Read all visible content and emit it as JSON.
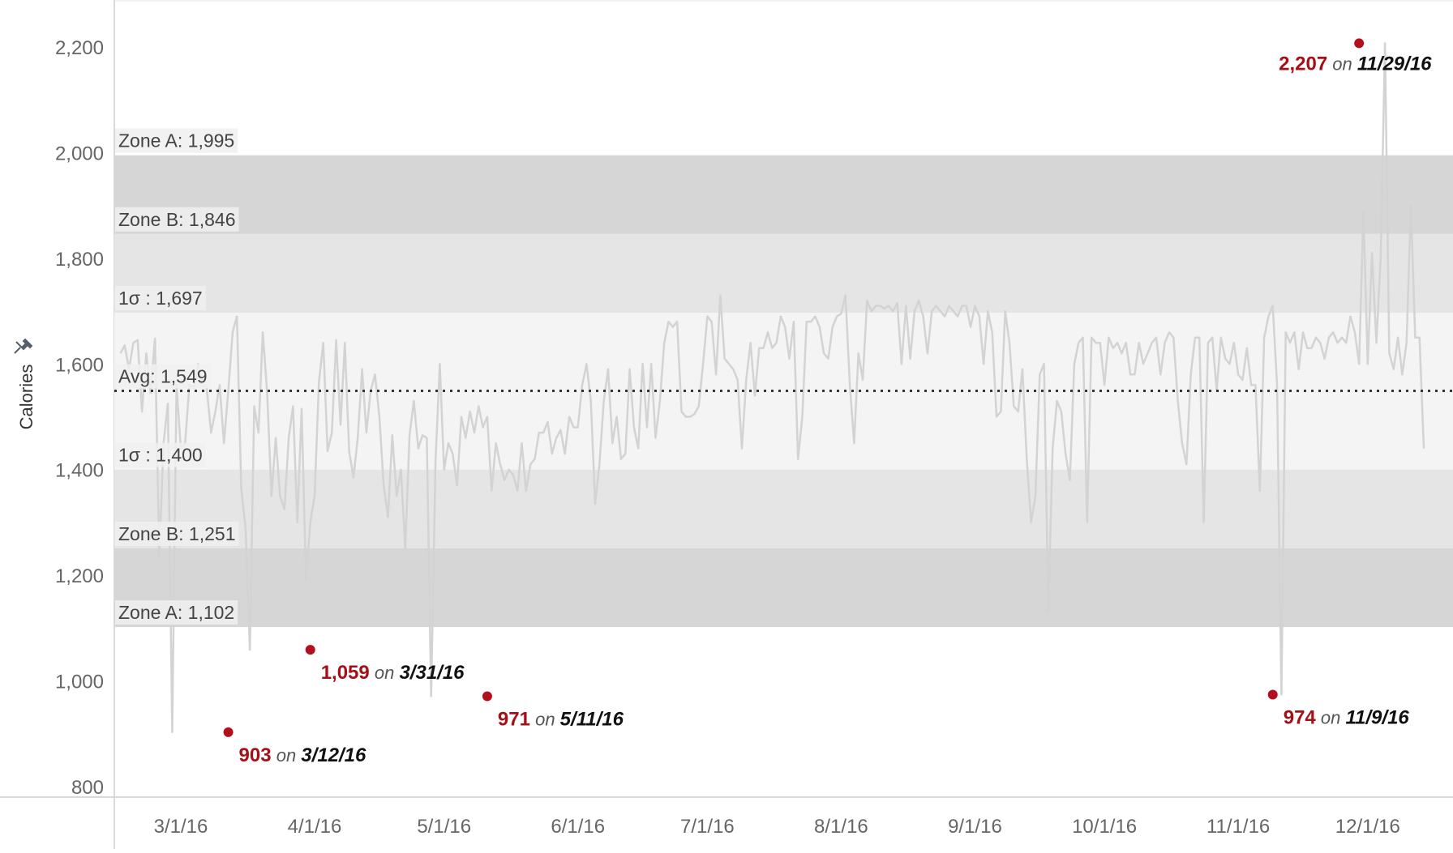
{
  "chart_data": {
    "type": "line",
    "title": "",
    "xlabel": "",
    "ylabel": "Calories",
    "ylim": [
      790,
      2300
    ],
    "x_range": [
      "2016-02-16",
      "2016-12-31"
    ],
    "y_ticks": [
      800,
      1000,
      1200,
      1400,
      1600,
      1800,
      2000,
      2200
    ],
    "y_tick_labels": [
      "800",
      "1,000",
      "1,200",
      "1,400",
      "1,600",
      "1,800",
      "2,000",
      "2,200"
    ],
    "x_ticks": [
      "2016-03-01",
      "2016-04-01",
      "2016-05-01",
      "2016-06-01",
      "2016-07-01",
      "2016-08-01",
      "2016-09-01",
      "2016-10-01",
      "2016-11-01",
      "2016-12-01"
    ],
    "x_tick_labels": [
      "3/1/16",
      "4/1/16",
      "5/1/16",
      "6/1/16",
      "7/1/16",
      "8/1/16",
      "9/1/16",
      "10/1/16",
      "11/1/16",
      "12/1/16"
    ],
    "colors": {
      "line": "#d3d3d3",
      "zone_a": "#d6d6d6",
      "zone_b": "#e5e5e5",
      "sigma": "#f4f4f4",
      "highlight": "#b2101f",
      "avg_line": "#333333"
    },
    "reference_lines": [
      {
        "label": "Zone A: 1,995",
        "value": 1995
      },
      {
        "label": "Zone B: 1,846",
        "value": 1846
      },
      {
        "label": "1σ : 1,697",
        "value": 1697
      },
      {
        "label": "Avg: 1,549",
        "value": 1549
      },
      {
        "label": "1σ : 1,400",
        "value": 1400
      },
      {
        "label": "Zone B: 1,251",
        "value": 1251
      },
      {
        "label": "Zone A: 1,102",
        "value": 1102
      }
    ],
    "annotations": [
      {
        "value_label": "903",
        "on": "on",
        "date_label": "3/12/16",
        "date": "2016-03-12",
        "value": 903
      },
      {
        "value_label": "1,059",
        "on": "on",
        "date_label": "3/31/16",
        "date": "2016-03-31",
        "value": 1059
      },
      {
        "value_label": "971",
        "on": "on",
        "date_label": "5/11/16",
        "date": "2016-05-11",
        "value": 971
      },
      {
        "value_label": "974",
        "on": "on",
        "date_label": "11/9/16",
        "date": "2016-11-09",
        "value": 974
      },
      {
        "value_label": "2,207",
        "on": "on",
        "date_label": "11/29/16",
        "date": "2016-11-29",
        "value": 2207
      }
    ],
    "series": [
      {
        "start_date": "2016-02-16",
        "values": [
          1620,
          1635,
          1590,
          1640,
          1645,
          1510,
          1620,
          1545,
          1648,
          1235,
          1450,
          1525,
          903,
          1560,
          1440,
          1450,
          1560,
          1555,
          1600,
          1560,
          1555,
          1470,
          1510,
          1560,
          1450,
          1550,
          1660,
          1690,
          1365,
          1290,
          1059,
          1520,
          1470,
          1660,
          1545,
          1350,
          1460,
          1350,
          1325,
          1460,
          1520,
          1300,
          1515,
          1190,
          1300,
          1350,
          1565,
          1640,
          1435,
          1470,
          1645,
          1485,
          1640,
          1435,
          1385,
          1460,
          1590,
          1470,
          1550,
          1580,
          1500,
          1370,
          1310,
          1465,
          1350,
          1400,
          1250,
          1465,
          1530,
          1440,
          1465,
          1460,
          971,
          1415,
          1600,
          1400,
          1450,
          1430,
          1370,
          1500,
          1460,
          1510,
          1470,
          1520,
          1480,
          1500,
          1360,
          1450,
          1410,
          1380,
          1400,
          1390,
          1360,
          1450,
          1360,
          1410,
          1420,
          1470,
          1470,
          1490,
          1430,
          1460,
          1475,
          1430,
          1500,
          1480,
          1480,
          1560,
          1600,
          1530,
          1335,
          1410,
          1530,
          1590,
          1450,
          1500,
          1420,
          1430,
          1590,
          1480,
          1440,
          1600,
          1480,
          1600,
          1460,
          1530,
          1640,
          1680,
          1670,
          1680,
          1510,
          1500,
          1500,
          1505,
          1520,
          1600,
          1690,
          1680,
          1580,
          1730,
          1610,
          1600,
          1590,
          1570,
          1440,
          1570,
          1640,
          1540,
          1630,
          1630,
          1660,
          1630,
          1640,
          1690,
          1670,
          1610,
          1680,
          1420,
          1500,
          1680,
          1680,
          1690,
          1670,
          1620,
          1610,
          1670,
          1690,
          1695,
          1730,
          1560,
          1450,
          1620,
          1570,
          1720,
          1700,
          1710,
          1710,
          1705,
          1710,
          1700,
          1715,
          1600,
          1710,
          1610,
          1700,
          1720,
          1690,
          1620,
          1700,
          1710,
          1700,
          1690,
          1710,
          1700,
          1690,
          1710,
          1710,
          1670,
          1710,
          1690,
          1600,
          1700,
          1660,
          1500,
          1510,
          1700,
          1640,
          1520,
          1510,
          1590,
          1420,
          1300,
          1350,
          1580,
          1600,
          1130,
          1440,
          1530,
          1510,
          1430,
          1380,
          1600,
          1640,
          1650,
          1300,
          1650,
          1640,
          1640,
          1560,
          1650,
          1630,
          1640,
          1620,
          1640,
          1580,
          1580,
          1640,
          1600,
          1620,
          1640,
          1650,
          1580,
          1640,
          1660,
          1650,
          1530,
          1450,
          1410,
          1580,
          1650,
          1650,
          1300,
          1640,
          1650,
          1550,
          1650,
          1610,
          1600,
          1640,
          1580,
          1570,
          1630,
          1560,
          1560,
          1360,
          1650,
          1690,
          1710,
          1560,
          974,
          1660,
          1640,
          1660,
          1590,
          1660,
          1630,
          1630,
          1650,
          1640,
          1610,
          1650,
          1660,
          1640,
          1650,
          1640,
          1690,
          1660,
          1600,
          1890,
          1600,
          1810,
          1640,
          1800,
          2207,
          1620,
          1590,
          1650,
          1580,
          1640,
          1900,
          1650,
          1650,
          1440
        ]
      }
    ]
  }
}
